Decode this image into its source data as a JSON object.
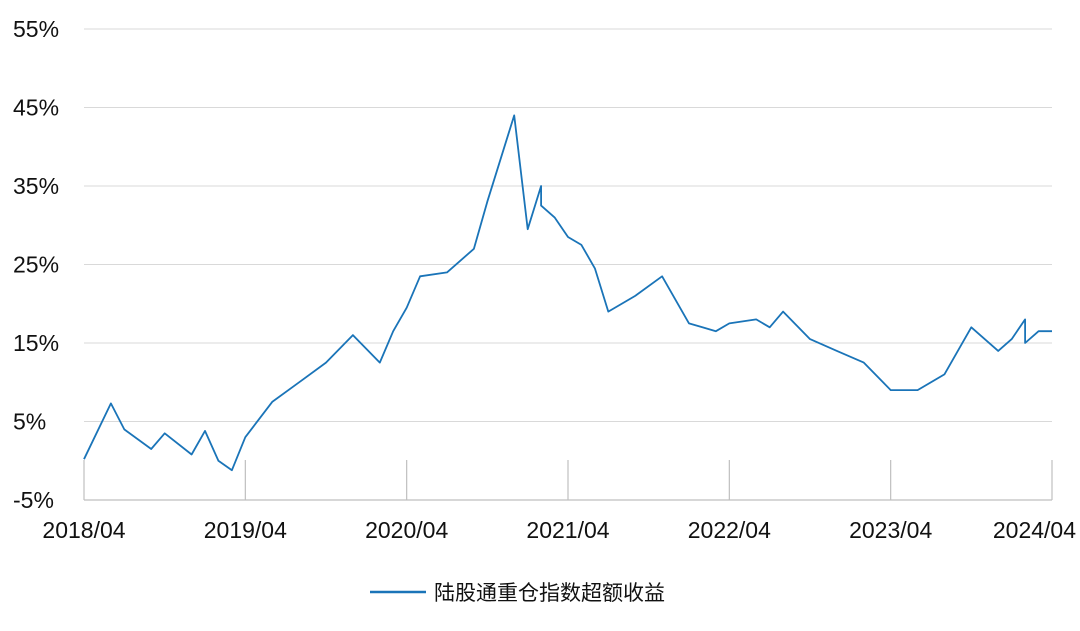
{
  "chart_data": {
    "type": "line",
    "title": "",
    "xlabel": "",
    "ylabel": "",
    "y_unit": "%",
    "ylim": [
      -5,
      55
    ],
    "y_ticks": [
      -5,
      5,
      15,
      25,
      35,
      45,
      55
    ],
    "y_tick_labels": [
      "-5%",
      "5%",
      "15%",
      "25%",
      "35%",
      "45%",
      "55%"
    ],
    "x_ticks": [
      "2018/04",
      "2019/04",
      "2020/04",
      "2021/04",
      "2022/04",
      "2023/04",
      "2024/04"
    ],
    "grid": "horizontal",
    "legend_position": "bottom-center",
    "colors": {
      "series": "#1a74b8",
      "grid": "#d9d9d9",
      "axis": "#bfbfbf"
    },
    "series": [
      {
        "name": "陆股通重仓指数超额收益",
        "x": [
          "2018/04",
          "2018/06",
          "2018/07",
          "2018/09",
          "2018/10",
          "2018/12",
          "2019/01",
          "2019/02",
          "2019/03",
          "2019/04",
          "2019/06",
          "2019/08",
          "2019/10",
          "2019/12",
          "2020/02",
          "2020/03",
          "2020/04",
          "2020/05",
          "2020/07",
          "2020/09",
          "2020/10",
          "2020/12",
          "2021/01",
          "2021/02",
          "2021/02",
          "2021/03",
          "2021/04",
          "2021/05",
          "2021/06",
          "2021/07",
          "2021/09",
          "2021/11",
          "2022/01",
          "2022/02",
          "2022/03",
          "2022/04",
          "2022/06",
          "2022/07",
          "2022/08",
          "2022/10",
          "2022/12",
          "2023/02",
          "2023/04",
          "2023/06",
          "2023/08",
          "2023/10",
          "2023/12",
          "2024/01",
          "2024/02",
          "2024/02",
          "2024/03",
          "2024/04"
        ],
        "values": [
          0.2,
          7.3,
          4.0,
          1.5,
          3.5,
          0.8,
          3.8,
          0.0,
          -1.2,
          3.0,
          7.5,
          10.0,
          12.5,
          16.0,
          12.5,
          16.5,
          19.5,
          23.5,
          24.0,
          27.0,
          33.0,
          44.0,
          29.5,
          35.0,
          32.5,
          31.0,
          28.5,
          27.5,
          24.5,
          19.0,
          21.0,
          23.5,
          17.5,
          17.0,
          16.5,
          17.5,
          18.0,
          17.0,
          19.0,
          15.5,
          14.0,
          12.5,
          9.0,
          9.0,
          11.0,
          17.0,
          14.0,
          15.5,
          18.0,
          15.0,
          16.5,
          16.5
        ]
      }
    ]
  }
}
